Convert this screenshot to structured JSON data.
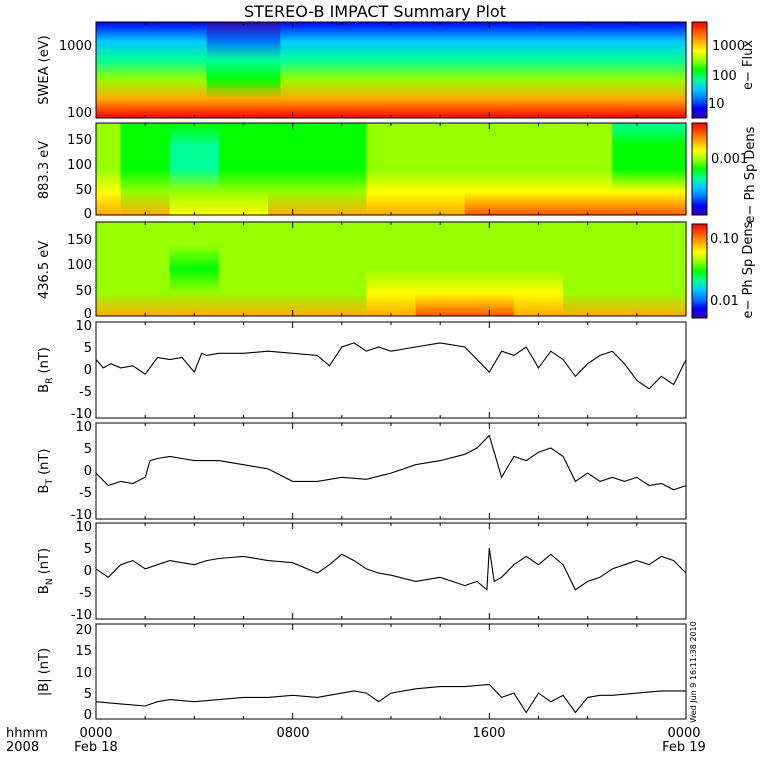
{
  "title": "STEREO-B IMPACT Summary Plot",
  "stamp": "Wed Jun  9 16:11:38 2010",
  "time_axis": {
    "unit_label": "hhmm",
    "year_label": "2008",
    "ticks": [
      {
        "hour": 0,
        "label": "0000",
        "date": "Feb 18"
      },
      {
        "hour": 8,
        "label": "0800",
        "date": ""
      },
      {
        "hour": 16,
        "label": "1600",
        "date": ""
      },
      {
        "hour": 24,
        "label": "0000",
        "date": "Feb 19"
      }
    ],
    "range_hours": [
      0,
      24
    ]
  },
  "colors": {
    "colorscale": [
      "#3200b4",
      "#0000ff",
      "#0078ff",
      "#00c8ff",
      "#00ff96",
      "#00ff00",
      "#96ff00",
      "#ffff00",
      "#ffaa00",
      "#ff5500",
      "#ff0000"
    ],
    "line": "#000000"
  },
  "panels": {
    "swea": {
      "ylabel": "SWEA (eV)",
      "cbar_label": "e− Flux",
      "y_ticks": [
        "1000",
        "100"
      ],
      "cbar_ticks": [
        "1000",
        "100",
        "10"
      ]
    },
    "pad1": {
      "ylabel": "883.3 eV",
      "cbar_label": "e− Ph Sp Dens",
      "y_ticks": [
        "150",
        "100",
        "50",
        "0"
      ],
      "cbar_ticks": [
        "0.001"
      ]
    },
    "pad2": {
      "ylabel": "436.5 eV",
      "cbar_label": "e− Ph Sp Dens",
      "y_ticks": [
        "150",
        "100",
        "50",
        "0"
      ],
      "cbar_ticks": [
        "0.10",
        "0.01"
      ]
    },
    "br": {
      "ylabel_main": "B",
      "ylabel_sub": "R",
      "ylabel_unit": " (nT)",
      "y_ticks": [
        "10",
        "5",
        "0",
        "-5",
        "-10"
      ]
    },
    "bt": {
      "ylabel_main": "B",
      "ylabel_sub": "T",
      "ylabel_unit": " (nT)",
      "y_ticks": [
        "10",
        "5",
        "0",
        "-5",
        "-10"
      ]
    },
    "bn": {
      "ylabel_main": "B",
      "ylabel_sub": "N",
      "ylabel_unit": " (nT)",
      "y_ticks": [
        "10",
        "5",
        "0",
        "-5",
        "-10"
      ]
    },
    "bmag": {
      "ylabel": "|B| (nT)",
      "y_ticks": [
        "20",
        "15",
        "10",
        "5",
        "0"
      ]
    }
  },
  "chart_data": [
    {
      "type": "heatmap",
      "name": "SWEA",
      "ylabel": "SWEA (eV)",
      "yscale": "log",
      "ylim": [
        90,
        1800
      ],
      "colorbar": {
        "label": "e− Flux",
        "scale": "log",
        "range": [
          3,
          5000
        ]
      },
      "x_hours": [
        0,
        3,
        6,
        9,
        12,
        15,
        18,
        21,
        24
      ],
      "energies_eV": [
        100,
        200,
        400,
        700,
        1000,
        1500
      ],
      "log_flux": [
        [
          3.7,
          3.7,
          3.7,
          3.7,
          3.7,
          3.7,
          3.7,
          3.7,
          3.7
        ],
        [
          3.1,
          3.1,
          3.0,
          3.1,
          3.1,
          3.1,
          3.1,
          3.1,
          3.1
        ],
        [
          2.4,
          2.4,
          2.2,
          2.4,
          2.4,
          2.4,
          2.4,
          2.4,
          2.4
        ],
        [
          1.8,
          1.8,
          1.6,
          1.8,
          1.8,
          1.8,
          1.8,
          1.8,
          1.8
        ],
        [
          1.2,
          1.2,
          1.0,
          1.2,
          1.2,
          1.2,
          1.2,
          1.2,
          1.2
        ],
        [
          0.5,
          0.5,
          0.4,
          0.5,
          0.5,
          0.5,
          0.5,
          0.5,
          0.5
        ]
      ]
    },
    {
      "type": "heatmap",
      "name": "883.3 eV",
      "ylabel": "883.3 eV",
      "ylim": [
        0,
        180
      ],
      "colorbar": {
        "label": "e− Ph Sp Dens",
        "scale": "log",
        "range": [
          0.0002,
          0.004
        ]
      },
      "x_hours": [
        0,
        2,
        4,
        6,
        8,
        10,
        12,
        14,
        16,
        18,
        20,
        22,
        24
      ],
      "pitch_angles": [
        0,
        45,
        90,
        135,
        180
      ],
      "level": [
        [
          0.8,
          0.75,
          0.7,
          0.7,
          0.75,
          0.75,
          0.8,
          0.8,
          0.85,
          0.9,
          0.9,
          0.9,
          0.85
        ],
        [
          0.65,
          0.6,
          0.55,
          0.6,
          0.6,
          0.6,
          0.65,
          0.65,
          0.7,
          0.7,
          0.7,
          0.7,
          0.65
        ],
        [
          0.55,
          0.5,
          0.35,
          0.5,
          0.5,
          0.5,
          0.55,
          0.55,
          0.55,
          0.55,
          0.55,
          0.5,
          0.5
        ],
        [
          0.55,
          0.5,
          0.4,
          0.5,
          0.5,
          0.5,
          0.55,
          0.55,
          0.55,
          0.55,
          0.55,
          0.45,
          0.45
        ],
        [
          0.55,
          0.5,
          0.45,
          0.5,
          0.5,
          0.5,
          0.55,
          0.55,
          0.55,
          0.55,
          0.55,
          0.4,
          0.35
        ]
      ]
    },
    {
      "type": "heatmap",
      "name": "436.5 eV",
      "ylabel": "436.5 eV",
      "ylim": [
        0,
        180
      ],
      "colorbar": {
        "label": "e− Ph Sp Dens",
        "scale": "log",
        "range": [
          0.005,
          0.15
        ]
      },
      "x_hours": [
        0,
        2,
        4,
        6,
        8,
        10,
        12,
        14,
        16,
        18,
        20,
        22,
        24
      ],
      "pitch_angles": [
        0,
        45,
        90,
        135,
        180
      ],
      "level": [
        [
          0.75,
          0.75,
          0.75,
          0.75,
          0.75,
          0.75,
          0.8,
          0.85,
          0.9,
          0.8,
          0.75,
          0.75,
          0.75
        ],
        [
          0.6,
          0.6,
          0.6,
          0.6,
          0.6,
          0.6,
          0.65,
          0.7,
          0.7,
          0.65,
          0.6,
          0.6,
          0.6
        ],
        [
          0.55,
          0.55,
          0.5,
          0.55,
          0.55,
          0.55,
          0.55,
          0.55,
          0.55,
          0.55,
          0.55,
          0.55,
          0.55
        ],
        [
          0.55,
          0.55,
          0.55,
          0.55,
          0.55,
          0.55,
          0.55,
          0.55,
          0.55,
          0.55,
          0.55,
          0.55,
          0.55
        ],
        [
          0.55,
          0.55,
          0.55,
          0.55,
          0.55,
          0.55,
          0.55,
          0.55,
          0.55,
          0.55,
          0.55,
          0.55,
          0.55
        ]
      ]
    },
    {
      "type": "line",
      "name": "B_R",
      "ylim": [
        -12,
        11
      ],
      "x_hours": [
        0,
        0.3,
        0.6,
        1.0,
        1.5,
        2.0,
        2.5,
        3.0,
        3.5,
        4.0,
        4.3,
        4.5,
        5.0,
        6.0,
        7.0,
        8.0,
        9.0,
        9.5,
        10.0,
        10.5,
        11.0,
        11.5,
        12.0,
        13.0,
        14.0,
        15.0,
        16.0,
        16.5,
        17.0,
        17.5,
        18.0,
        18.5,
        19.0,
        19.5,
        20.0,
        20.5,
        21.0,
        21.5,
        22.0,
        22.5,
        23.0,
        23.5,
        24.0
      ],
      "y": [
        2.0,
        0.0,
        1.0,
        0.0,
        0.5,
        -1.5,
        2.5,
        2.0,
        2.5,
        -1.0,
        3.5,
        3.0,
        3.5,
        3.5,
        4.0,
        3.5,
        3.0,
        0.5,
        5.0,
        6.0,
        4.0,
        5.0,
        4.0,
        5.0,
        6.0,
        5.0,
        -1.0,
        4.0,
        3.0,
        5.0,
        0.0,
        4.0,
        2.0,
        -2.0,
        1.0,
        3.0,
        4.0,
        1.0,
        -3.0,
        -5.0,
        -2.0,
        -4.0,
        2.0
      ]
    },
    {
      "type": "line",
      "name": "B_T",
      "ylim": [
        -12,
        11
      ],
      "x_hours": [
        0,
        0.5,
        1.0,
        1.5,
        2.0,
        2.2,
        2.5,
        3.0,
        3.5,
        4.0,
        5.0,
        6.0,
        7.0,
        8.0,
        9.0,
        10.0,
        11.0,
        12.0,
        13.0,
        14.0,
        15.0,
        15.5,
        16.0,
        16.2,
        16.5,
        17.0,
        17.5,
        18.0,
        18.5,
        19.0,
        19.5,
        20.0,
        20.5,
        21.0,
        21.5,
        22.0,
        22.5,
        23.0,
        23.5,
        24.0
      ],
      "y": [
        -1.0,
        -4.0,
        -3.0,
        -3.5,
        -2.0,
        2.0,
        2.5,
        3.0,
        2.5,
        2.0,
        2.0,
        1.0,
        0.0,
        -3.0,
        -3.0,
        -2.0,
        -2.5,
        -1.0,
        1.0,
        2.0,
        3.5,
        5.0,
        8.0,
        4.0,
        -2.0,
        3.0,
        2.0,
        4.0,
        5.0,
        3.0,
        -3.0,
        -1.0,
        -3.0,
        -2.0,
        -3.0,
        -2.0,
        -4.0,
        -3.5,
        -5.0,
        -4.0
      ]
    },
    {
      "type": "line",
      "name": "B_N",
      "ylim": [
        -12,
        11
      ],
      "x_hours": [
        0,
        0.5,
        1.0,
        1.5,
        2.0,
        2.5,
        3.0,
        3.5,
        4.0,
        4.5,
        5.0,
        6.0,
        7.0,
        8.0,
        9.0,
        9.5,
        10.0,
        10.5,
        11.0,
        11.5,
        12.0,
        13.0,
        14.0,
        15.0,
        15.5,
        15.9,
        16.0,
        16.2,
        16.5,
        17.0,
        17.5,
        18.0,
        18.5,
        19.0,
        19.5,
        20.0,
        20.5,
        21.0,
        21.5,
        22.0,
        22.5,
        23.0,
        23.5,
        24.0
      ],
      "y": [
        0.0,
        -2.0,
        1.0,
        2.0,
        0.0,
        1.0,
        2.0,
        1.5,
        1.0,
        2.0,
        2.5,
        3.0,
        2.0,
        1.5,
        -1.0,
        1.0,
        3.5,
        2.0,
        0.0,
        -1.0,
        -1.5,
        -3.0,
        -2.0,
        -4.0,
        -3.0,
        -5.0,
        5.0,
        -3.0,
        -2.0,
        1.0,
        3.0,
        1.0,
        3.5,
        1.0,
        -5.0,
        -3.0,
        -2.0,
        0.0,
        1.0,
        2.0,
        1.0,
        3.0,
        2.0,
        -1.0
      ]
    },
    {
      "type": "line",
      "name": "|B|",
      "ylim": [
        -1,
        21
      ],
      "x_hours": [
        0,
        1.0,
        2.0,
        2.5,
        3.0,
        4.0,
        5.0,
        6.0,
        7.0,
        8.0,
        9.0,
        10.0,
        10.5,
        11.0,
        11.5,
        12.0,
        13.0,
        14.0,
        15.0,
        16.0,
        16.5,
        17.0,
        17.5,
        18.0,
        18.5,
        19.0,
        19.5,
        20.0,
        20.5,
        21.0,
        22.0,
        23.0,
        24.0
      ],
      "y": [
        3.0,
        2.5,
        2.0,
        3.0,
        3.5,
        3.0,
        3.5,
        4.0,
        4.0,
        4.5,
        4.0,
        5.0,
        5.5,
        5.0,
        3.0,
        5.0,
        6.0,
        6.5,
        6.5,
        7.0,
        4.0,
        5.0,
        0.5,
        5.0,
        3.0,
        4.5,
        0.5,
        4.0,
        4.5,
        4.5,
        5.0,
        5.5,
        5.5
      ]
    }
  ]
}
